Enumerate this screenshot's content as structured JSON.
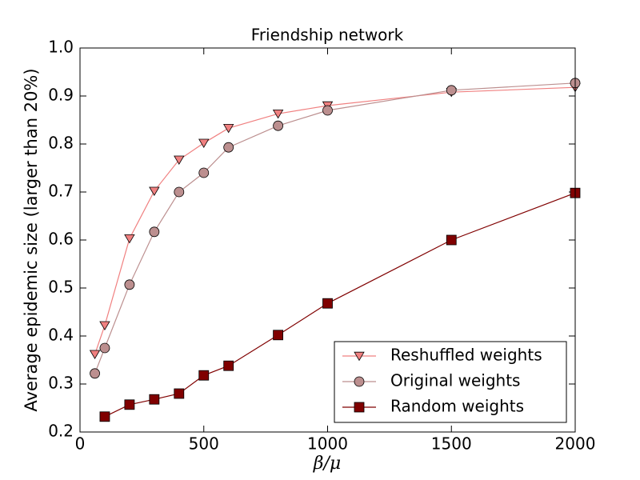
{
  "chart_data": {
    "type": "line",
    "title": "Friendship network",
    "xlabel": "β/μ",
    "ylabel": "Average epidemic size (larger than 20%)",
    "xlim": [
      0,
      2000
    ],
    "xticks": [
      0,
      500,
      1000,
      1500,
      2000
    ],
    "ylim": [
      0.2,
      1
    ],
    "yticks": [
      0.2,
      0.3,
      0.4,
      0.5,
      0.6,
      0.7,
      0.8,
      0.9,
      {
        "value": 1,
        "label": "1.0"
      }
    ],
    "legend": "lower right",
    "series": [
      {
        "name": "Reshuffled weights",
        "color": "#f08080",
        "marker": "v",
        "x": [
          60,
          100,
          200,
          300,
          400,
          500,
          600,
          800,
          1000,
          1500,
          2000
        ],
        "values": [
          0.362,
          0.422,
          0.603,
          0.702,
          0.767,
          0.802,
          0.833,
          0.863,
          0.88,
          0.908,
          0.918
        ]
      },
      {
        "name": "Original weights",
        "color": "#bc8f8f",
        "marker": "o",
        "x": [
          60,
          100,
          200,
          300,
          400,
          500,
          600,
          800,
          1000,
          1500,
          2000
        ],
        "values": [
          0.322,
          0.375,
          0.507,
          0.617,
          0.7,
          0.74,
          0.793,
          0.838,
          0.87,
          0.912,
          0.927
        ]
      },
      {
        "name": "Random weights",
        "color": "#800000",
        "marker": "s",
        "x": [
          100,
          200,
          300,
          400,
          500,
          600,
          800,
          1000,
          1500,
          2000
        ],
        "values": [
          0.232,
          0.257,
          0.268,
          0.28,
          0.318,
          0.338,
          0.402,
          0.468,
          0.6,
          0.698
        ]
      }
    ]
  }
}
